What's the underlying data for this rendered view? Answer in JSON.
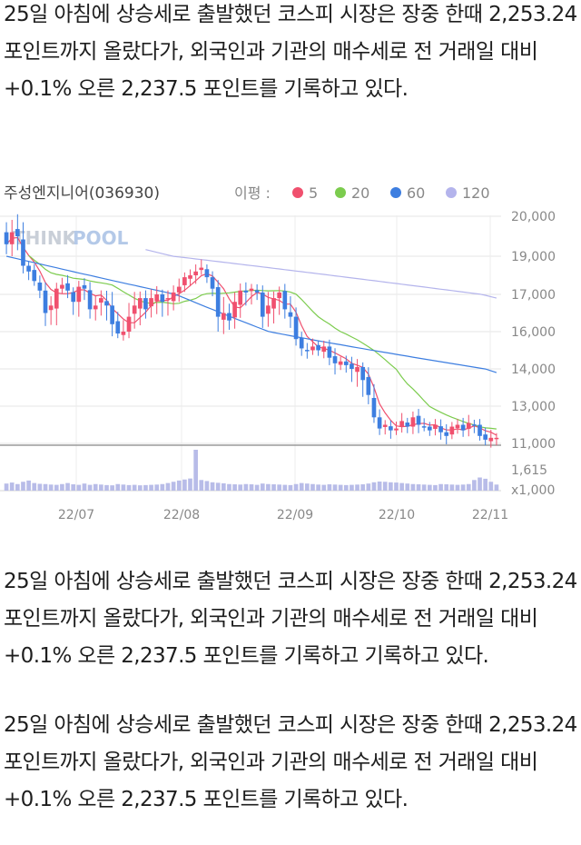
{
  "paragraphs": {
    "p1": "25일 아침에 상승세로 출발했던 코스피 시장은 장중 한때 2,253.24 포인트까지 올랐다가, 외국인과 기관의 매수세로 전 거래일 대비+0.1% 오른 2,237.5 포인트를 기록하고 있다.",
    "p2": "25일 아침에 상승세로 출발했던 코스피 시장은 장중 한때 2,253.24 포인트까지 올랐다가, 외국인과 기관의 매수세로 전 거래일 대비+0.1% 오른 2,237.5 포인트를 기록하고 기록하고 있다.",
    "p3": "25일 아침에 상승세로 출발했던 코스피 시장은 장중 한때 2,253.24 포인트까지 올랐다가, 외국인과 기관의 매수세로 전 거래일 대비+0.1% 오른 2,237.5 포인트를 기록하고 있다."
  },
  "chart_data": {
    "type": "candlestick",
    "title": "주성엔지니어(036930)",
    "legend_label": "이평 :",
    "legend": [
      {
        "name": "5",
        "color": "#f0506e"
      },
      {
        "name": "20",
        "color": "#7ccc4e"
      },
      {
        "name": "60",
        "color": "#3d7ee0"
      },
      {
        "name": "120",
        "color": "#b4b4ec"
      }
    ],
    "watermark": {
      "part1": "THINK",
      "part2": "POOL"
    },
    "y_ticks": [
      "20,000",
      "19,000",
      "17,000",
      "16,000",
      "14,000",
      "13,000",
      "11,000"
    ],
    "volume_ticks": [
      "1,615",
      "x1,000"
    ],
    "x_ticks": [
      "22/07",
      "22/08",
      "22/09",
      "22/10",
      "22/11"
    ],
    "up_color": "#f0506e",
    "down_color": "#3d7ee0",
    "closes": [
      19300,
      19600,
      19500,
      18500,
      18200,
      17700,
      17200,
      16500,
      16700,
      17300,
      17500,
      17200,
      16800,
      17400,
      17300,
      16600,
      16700,
      16900,
      16700,
      16200,
      15900,
      16000,
      16400,
      16700,
      16900,
      16600,
      16900,
      17000,
      16800,
      16900,
      17100,
      17400,
      17900,
      18000,
      18200,
      18400,
      17900,
      17300,
      16400,
      16500,
      16300,
      16800,
      17200,
      17100,
      17300,
      17100,
      16400,
      16700,
      16900,
      17100,
      16600,
      16400,
      15600,
      15100,
      15000,
      15200,
      15000,
      15200,
      14600,
      14300,
      14400,
      14200,
      14000,
      14100,
      13700,
      13300,
      12400,
      11800,
      12000,
      11700,
      11800,
      12200,
      11900,
      12400,
      12000,
      11900,
      11700,
      12000,
      11600,
      11400,
      11900,
      12000,
      11700,
      12100,
      12000,
      11400,
      11200,
      11300,
      11300
    ],
    "ma5_end": 11700,
    "ma20_end": 12200,
    "ma60_end": 13900,
    "ma120_end": 16900,
    "ma60_start": 19000,
    "ma120_start": 20000,
    "volumes": [
      280,
      320,
      260,
      350,
      400,
      300,
      270,
      260,
      240,
      230,
      260,
      300,
      250,
      230,
      280,
      230,
      260,
      240,
      220,
      210,
      260,
      240,
      220,
      230,
      210,
      220,
      230,
      240,
      260,
      300,
      350,
      400,
      440,
      480,
      1615,
      420,
      380,
      330,
      310,
      290,
      260,
      250,
      240,
      260,
      250,
      230,
      280,
      260,
      250,
      240,
      230,
      220,
      260,
      300,
      280,
      260,
      240,
      230,
      250,
      240,
      230,
      220,
      230,
      240,
      250,
      280,
      330,
      360,
      350,
      330,
      320,
      300,
      280,
      260,
      250,
      240,
      230,
      220,
      260,
      250,
      240,
      230,
      240,
      260,
      420,
      520,
      470,
      350,
      240
    ]
  }
}
